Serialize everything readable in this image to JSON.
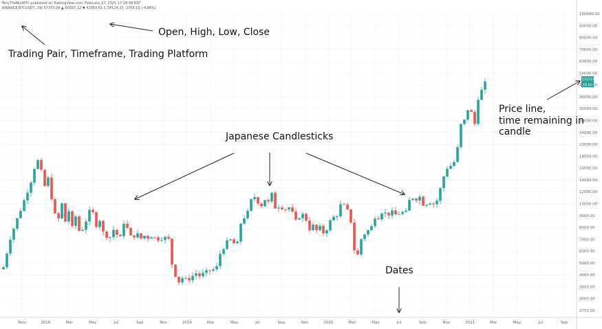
{
  "header": {
    "line1": "TonyTheBullBTC published on TradingView.com, February 27, 2021 17:28:38 EST",
    "line2": "BINANCE:BTCUSDT, 1W  57373.08  ▲ 60937.12  ▼ 42950.61  C 54124.33  -2765.10 (-4.86%)",
    "ohlc": {
      "open": "57373.08",
      "high": "60937.12",
      "low": "42950.61",
      "close": "54124.33"
    }
  },
  "annotations": {
    "open_high_low_close": "Open, High, Low, Close",
    "trading_pair": "Trading Pair, Timeframe, Trading Platform",
    "japanese_candlesticks": "Japanese Candlesticks",
    "price_line_1": "Price line,",
    "price_line_2": "time remaining in",
    "price_line_3": "candle",
    "dates": "Dates"
  },
  "price_tag": {
    "price": "57373.08",
    "countdown": "1D 6H",
    "color": "#26a69a"
  },
  "colors": {
    "up": "#26a69a",
    "down": "#ef5350",
    "grid": "#f0f3f7",
    "axis": "#d6dce3"
  },
  "chart_data": {
    "type": "candlestick",
    "symbol": "BINANCE:BTCUSDT",
    "timeframe": "1W",
    "y_scale": "log",
    "ylim": [
      2200,
      160000
    ],
    "y_unit": "USDT",
    "y_ticks": [
      "160000.00",
      "90000.00",
      "80000.00",
      "70000.00",
      "60000.00",
      "50000.00",
      "40000.00",
      "36000.00",
      "32000.00",
      "28000.00",
      "24000.00",
      "20000.00",
      "18000.00",
      "16000.00",
      "14000.00",
      "12000.00",
      "10000.00",
      "9000.00",
      "8000.00",
      "7000.00",
      "6000.00",
      "5000.00",
      "4000.00",
      "3600.00",
      "3000.00",
      "2750.00"
    ],
    "x_ticks": [
      "Nov",
      "2018",
      "Mar",
      "May",
      "Jul",
      "Sep",
      "Nov",
      "2019",
      "Mar",
      "May",
      "Jul",
      "Sep",
      "Nov",
      "2020",
      "Mar",
      "May",
      "Jul",
      "Sep",
      "Nov",
      "2021",
      "Mar",
      "May",
      "Jul",
      "Sep"
    ],
    "price_points": [
      [
        0,
        4300
      ],
      [
        10,
        6500
      ],
      [
        20,
        8500
      ],
      [
        30,
        11000
      ],
      [
        40,
        14500
      ],
      [
        45,
        17500
      ],
      [
        50,
        19300
      ],
      [
        55,
        16500
      ],
      [
        60,
        13500
      ],
      [
        65,
        15000
      ],
      [
        70,
        11500
      ],
      [
        75,
        9000
      ],
      [
        80,
        8500
      ],
      [
        85,
        10500
      ],
      [
        90,
        8200
      ],
      [
        95,
        9500
      ],
      [
        100,
        7500
      ],
      [
        105,
        8800
      ],
      [
        110,
        7200
      ],
      [
        115,
        7400
      ],
      [
        120,
        8300
      ],
      [
        125,
        9400
      ],
      [
        130,
        9200
      ],
      [
        135,
        7800
      ],
      [
        140,
        8400
      ],
      [
        145,
        7000
      ],
      [
        150,
        6700
      ],
      [
        155,
        6600
      ],
      [
        160,
        7300
      ],
      [
        165,
        6800
      ],
      [
        170,
        6500
      ],
      [
        175,
        8100
      ],
      [
        180,
        7400
      ],
      [
        185,
        6600
      ],
      [
        190,
        6700
      ],
      [
        195,
        6800
      ],
      [
        200,
        6450
      ],
      [
        205,
        6700
      ],
      [
        210,
        6550
      ],
      [
        215,
        6700
      ],
      [
        220,
        6500
      ],
      [
        225,
        6400
      ],
      [
        230,
        6500
      ],
      [
        235,
        6500
      ],
      [
        240,
        6350
      ],
      [
        245,
        4500
      ],
      [
        250,
        3850
      ],
      [
        255,
        3500
      ],
      [
        260,
        3700
      ],
      [
        265,
        3600
      ],
      [
        270,
        3650
      ],
      [
        275,
        3800
      ],
      [
        280,
        3950
      ],
      [
        285,
        3800
      ],
      [
        290,
        3900
      ],
      [
        295,
        4000
      ],
      [
        300,
        4100
      ],
      [
        305,
        4150
      ],
      [
        310,
        4300
      ],
      [
        315,
        5200
      ],
      [
        320,
        5700
      ],
      [
        325,
        6100
      ],
      [
        330,
        6300
      ],
      [
        335,
        6000
      ],
      [
        340,
        6000
      ],
      [
        345,
        8000
      ],
      [
        350,
        8700
      ],
      [
        355,
        9300
      ],
      [
        360,
        11000
      ],
      [
        365,
        11600
      ],
      [
        370,
        10800
      ],
      [
        375,
        10300
      ],
      [
        380,
        11200
      ],
      [
        385,
        10700
      ],
      [
        390,
        12000
      ],
      [
        395,
        10000
      ],
      [
        400,
        10200
      ],
      [
        405,
        10000
      ],
      [
        410,
        9800
      ],
      [
        415,
        10000
      ],
      [
        420,
        9200
      ],
      [
        425,
        8200
      ],
      [
        430,
        8800
      ],
      [
        435,
        9000
      ],
      [
        440,
        8400
      ],
      [
        445,
        7400
      ],
      [
        450,
        7700
      ],
      [
        455,
        7200
      ],
      [
        460,
        7500
      ],
      [
        465,
        7000
      ],
      [
        470,
        7400
      ],
      [
        475,
        8200
      ],
      [
        480,
        8700
      ],
      [
        485,
        9000
      ],
      [
        490,
        10300
      ],
      [
        495,
        10200
      ],
      [
        500,
        9500
      ],
      [
        505,
        8200
      ],
      [
        510,
        5500
      ],
      [
        515,
        5100
      ],
      [
        520,
        6400
      ],
      [
        525,
        6900
      ],
      [
        530,
        7200
      ],
      [
        535,
        7600
      ],
      [
        540,
        8800
      ],
      [
        545,
        8700
      ],
      [
        550,
        9400
      ],
      [
        555,
        9200
      ],
      [
        560,
        9100
      ],
      [
        565,
        9300
      ],
      [
        570,
        9000
      ],
      [
        575,
        9200
      ],
      [
        580,
        9300
      ],
      [
        585,
        9300
      ],
      [
        590,
        11000
      ],
      [
        595,
        11500
      ],
      [
        600,
        11300
      ],
      [
        605,
        11600
      ],
      [
        610,
        10500
      ],
      [
        615,
        10600
      ],
      [
        620,
        10800
      ],
      [
        625,
        10500
      ],
      [
        630,
        11000
      ],
      [
        635,
        13000
      ],
      [
        640,
        15500
      ],
      [
        645,
        17500
      ],
      [
        650,
        18000
      ],
      [
        655,
        19000
      ],
      [
        660,
        23000
      ],
      [
        665,
        32000
      ],
      [
        670,
        34000
      ],
      [
        675,
        40000
      ],
      [
        680,
        38000
      ],
      [
        685,
        32500
      ],
      [
        690,
        47000
      ],
      [
        695,
        52000
      ],
      [
        700,
        57500
      ]
    ]
  }
}
